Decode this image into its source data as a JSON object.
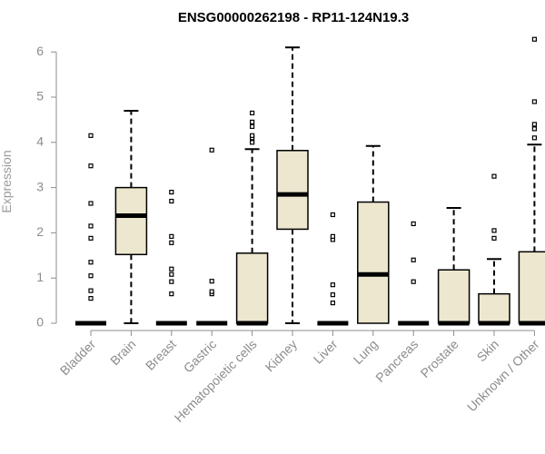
{
  "chart_data": {
    "type": "boxplot",
    "title": "ENSG00000262198 - RP11-124N19.3",
    "ylabel": "Expression",
    "ylim": [
      0,
      6.3
    ],
    "yticks": [
      "0",
      "1",
      "2",
      "3",
      "4",
      "5",
      "6"
    ],
    "box_fill": "#ede7cf",
    "categories": [
      "Bladder",
      "Brain",
      "Breast",
      "Gastric",
      "Hematopoietic cells",
      "Kidney",
      "Liver",
      "Lung",
      "Pancreas",
      "Prostate",
      "Skin",
      "Unknown / Other"
    ],
    "boxes": [
      {
        "q1": 0,
        "median": 0,
        "q3": 0,
        "whisker_low": 0,
        "whisker_high": 0,
        "outliers": [
          0.55,
          0.72,
          1.05,
          1.35,
          1.88,
          2.15,
          2.65,
          3.48,
          4.15
        ]
      },
      {
        "q1": 1.52,
        "median": 2.38,
        "q3": 3.0,
        "whisker_low": 0,
        "whisker_high": 4.7,
        "outliers": []
      },
      {
        "q1": 0,
        "median": 0,
        "q3": 0,
        "whisker_low": 0,
        "whisker_high": 0,
        "outliers": [
          0.65,
          0.92,
          1.08,
          1.2,
          1.78,
          1.92,
          2.7,
          2.9
        ]
      },
      {
        "q1": 0,
        "median": 0,
        "q3": 0,
        "whisker_low": 0,
        "whisker_high": 0,
        "outliers": [
          0.65,
          0.7,
          0.93,
          3.83
        ]
      },
      {
        "q1": 0,
        "median": 0,
        "q3": 1.55,
        "whisker_low": 0,
        "whisker_high": 3.85,
        "outliers": [
          4.0,
          4.1,
          4.15,
          4.35,
          4.45,
          4.65
        ]
      },
      {
        "q1": 2.08,
        "median": 2.85,
        "q3": 3.82,
        "whisker_low": 0,
        "whisker_high": 6.1,
        "outliers": []
      },
      {
        "q1": 0,
        "median": 0,
        "q3": 0,
        "whisker_low": 0,
        "whisker_high": 0,
        "outliers": [
          0.45,
          0.63,
          0.85,
          1.85,
          1.92,
          2.4
        ]
      },
      {
        "q1": 0,
        "median": 1.08,
        "q3": 2.68,
        "whisker_low": 0,
        "whisker_high": 3.92,
        "outliers": []
      },
      {
        "q1": 0,
        "median": 0,
        "q3": 0,
        "whisker_low": 0,
        "whisker_high": 0,
        "outliers": [
          0.92,
          1.4,
          2.2
        ]
      },
      {
        "q1": 0,
        "median": 0,
        "q3": 1.18,
        "whisker_low": 0,
        "whisker_high": 2.55,
        "outliers": []
      },
      {
        "q1": 0,
        "median": 0,
        "q3": 0.65,
        "whisker_low": 0,
        "whisker_high": 1.42,
        "outliers": [
          1.88,
          2.05,
          3.25
        ]
      },
      {
        "q1": 0,
        "median": 0,
        "q3": 1.58,
        "whisker_low": 0,
        "whisker_high": 3.95,
        "outliers": [
          4.1,
          4.3,
          4.4,
          4.9,
          6.28
        ]
      }
    ]
  }
}
